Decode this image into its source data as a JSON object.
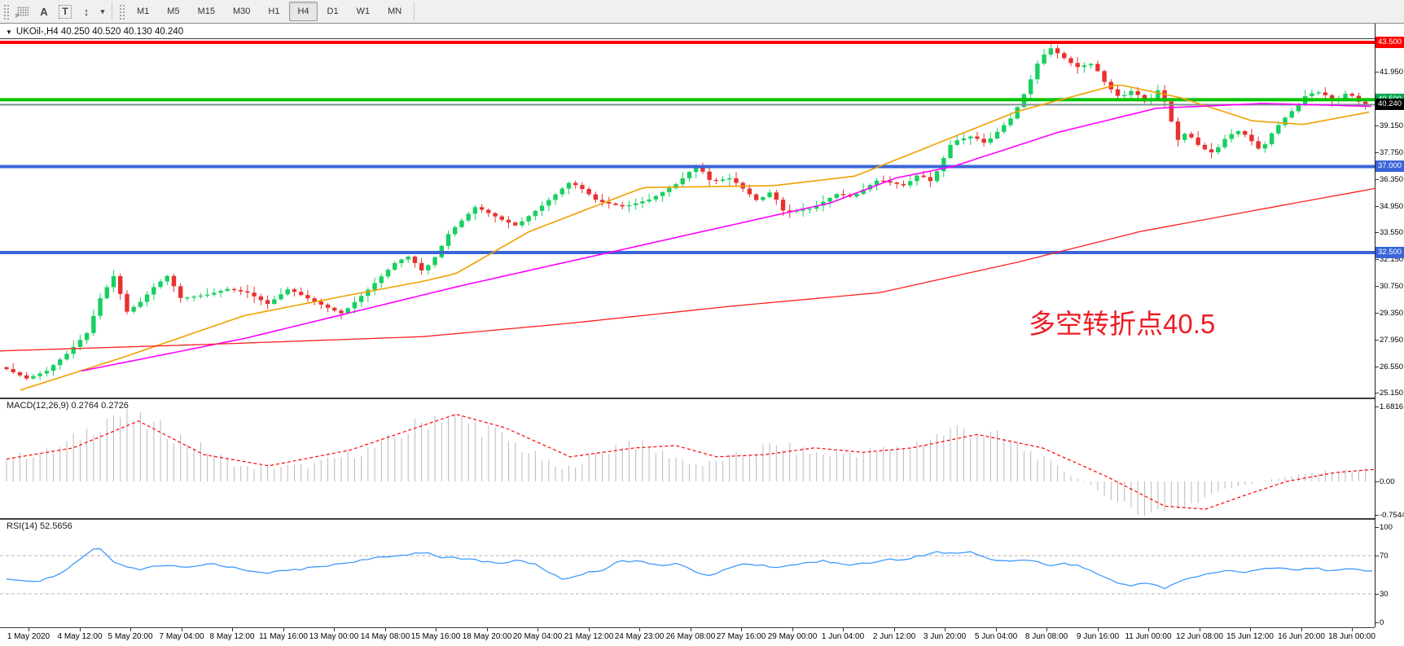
{
  "toolbar": {
    "icons": [
      {
        "name": "grid-f-icon",
        "glyph": "",
        "sub": "F"
      },
      {
        "name": "font-tool-icon",
        "glyph": "A",
        "sub": ""
      },
      {
        "name": "text-tool-icon",
        "glyph": "T",
        "sub": ""
      },
      {
        "name": "cycle-symbols-icon",
        "glyph": "↕",
        "sub": ""
      },
      {
        "name": "dropdown-caret-icon",
        "glyph": "▾",
        "sub": ""
      }
    ],
    "timeframes": [
      "M1",
      "M5",
      "M15",
      "M30",
      "H1",
      "H4",
      "D1",
      "W1",
      "MN"
    ],
    "active_timeframe": "H4"
  },
  "title": {
    "dropdown_glyph": "▼",
    "text": "UKOil-,H4  40.250 40.520 40.130 40.240"
  },
  "annotation": {
    "text": "多空转折点40.5",
    "color": "#ee1c25"
  },
  "price_axis": {
    "ticks": [
      "41.950",
      "39.150",
      "37.750",
      "36.350",
      "34.950",
      "33.550",
      "32.150",
      "30.750",
      "29.350",
      "27.950",
      "26.550",
      "25.150"
    ],
    "badges": [
      {
        "label": "43.500",
        "price": 43.5,
        "bg": "#ff0000"
      },
      {
        "label": "40.500",
        "price": 40.5,
        "bg": "#00a651"
      },
      {
        "label": "40.240",
        "price": 40.24,
        "bg": "#000000"
      },
      {
        "label": "37.000",
        "price": 37.0,
        "bg": "#3a64d8"
      },
      {
        "label": "32.500",
        "price": 32.5,
        "bg": "#3a64d8"
      }
    ]
  },
  "hlines": [
    {
      "price": 43.5,
      "color": "#fe0000",
      "width": 4
    },
    {
      "price": 40.5,
      "color": "#00c400",
      "width": 4
    },
    {
      "price": 40.24,
      "color": "#7f9193",
      "width": 2
    },
    {
      "price": 37.0,
      "color": "#3a64d8",
      "width": 4
    },
    {
      "price": 32.5,
      "color": "#3a64d8",
      "width": 4
    }
  ],
  "macd": {
    "label": "MACD(12,26,9) 0.2764 0.2726",
    "axis_labels": [
      "1.6816",
      "0.00",
      "-0.7544"
    ],
    "axis_values": [
      1.6816,
      0,
      -0.7544
    ],
    "hist_color": "#b9b9b9",
    "signal_color": "#ff0000",
    "hist_anchors": [
      [
        8,
        0.5
      ],
      [
        70,
        0.7
      ],
      [
        140,
        1.5
      ],
      [
        200,
        1.15
      ],
      [
        300,
        0.3
      ],
      [
        380,
        0.35
      ],
      [
        460,
        0.75
      ],
      [
        540,
        1.5
      ],
      [
        600,
        1.15
      ],
      [
        690,
        0.25
      ],
      [
        770,
        0.9
      ],
      [
        860,
        0.35
      ],
      [
        950,
        0.8
      ],
      [
        1010,
        0.6
      ],
      [
        1100,
        0.7
      ],
      [
        1180,
        1.2
      ],
      [
        1240,
        0.9
      ],
      [
        1330,
        0.0
      ],
      [
        1400,
        -0.75
      ],
      [
        1450,
        -0.6
      ],
      [
        1500,
        -0.2
      ],
      [
        1560,
        0.05
      ],
      [
        1620,
        0.2
      ],
      [
        1688,
        0.28
      ]
    ],
    "signal_anchors": [
      [
        8,
        0.5
      ],
      [
        90,
        0.75
      ],
      [
        170,
        1.35
      ],
      [
        250,
        0.6
      ],
      [
        330,
        0.35
      ],
      [
        430,
        0.7
      ],
      [
        560,
        1.5
      ],
      [
        620,
        1.2
      ],
      [
        700,
        0.55
      ],
      [
        780,
        0.75
      ],
      [
        830,
        0.8
      ],
      [
        880,
        0.55
      ],
      [
        940,
        0.6
      ],
      [
        1000,
        0.75
      ],
      [
        1060,
        0.65
      ],
      [
        1120,
        0.75
      ],
      [
        1200,
        1.05
      ],
      [
        1280,
        0.75
      ],
      [
        1360,
        0.1
      ],
      [
        1430,
        -0.55
      ],
      [
        1480,
        -0.62
      ],
      [
        1530,
        -0.3
      ],
      [
        1580,
        0.0
      ],
      [
        1640,
        0.2
      ],
      [
        1688,
        0.27
      ]
    ]
  },
  "rsi": {
    "label": "RSI(14) 52.5656",
    "axis_labels": [
      "100",
      "70",
      "30",
      "0"
    ],
    "axis_values": [
      100,
      70,
      30,
      0
    ],
    "levels": [
      70,
      30
    ],
    "line_color": "#3e9bff",
    "anchors": [
      [
        8,
        45
      ],
      [
        40,
        42
      ],
      [
        70,
        48
      ],
      [
        120,
        80
      ],
      [
        140,
        62
      ],
      [
        170,
        55
      ],
      [
        200,
        60
      ],
      [
        230,
        57
      ],
      [
        260,
        62
      ],
      [
        300,
        55
      ],
      [
        330,
        52
      ],
      [
        360,
        55
      ],
      [
        390,
        58
      ],
      [
        420,
        62
      ],
      [
        450,
        66
      ],
      [
        490,
        70
      ],
      [
        520,
        74
      ],
      [
        545,
        68
      ],
      [
        580,
        66
      ],
      [
        610,
        62
      ],
      [
        640,
        65
      ],
      [
        660,
        60
      ],
      [
        690,
        45
      ],
      [
        720,
        52
      ],
      [
        740,
        55
      ],
      [
        760,
        65
      ],
      [
        790,
        63
      ],
      [
        810,
        60
      ],
      [
        830,
        62
      ],
      [
        850,
        55
      ],
      [
        870,
        48
      ],
      [
        890,
        55
      ],
      [
        910,
        62
      ],
      [
        930,
        60
      ],
      [
        950,
        58
      ],
      [
        970,
        60
      ],
      [
        990,
        62
      ],
      [
        1010,
        65
      ],
      [
        1030,
        62
      ],
      [
        1050,
        60
      ],
      [
        1070,
        63
      ],
      [
        1090,
        66
      ],
      [
        1110,
        65
      ],
      [
        1130,
        70
      ],
      [
        1150,
        74
      ],
      [
        1170,
        72
      ],
      [
        1190,
        74
      ],
      [
        1210,
        68
      ],
      [
        1230,
        64
      ],
      [
        1250,
        66
      ],
      [
        1270,
        64
      ],
      [
        1290,
        60
      ],
      [
        1310,
        62
      ],
      [
        1330,
        58
      ],
      [
        1350,
        50
      ],
      [
        1370,
        42
      ],
      [
        1390,
        38
      ],
      [
        1410,
        42
      ],
      [
        1430,
        36
      ],
      [
        1450,
        44
      ],
      [
        1470,
        48
      ],
      [
        1490,
        52
      ],
      [
        1510,
        55
      ],
      [
        1530,
        52
      ],
      [
        1550,
        56
      ],
      [
        1570,
        58
      ],
      [
        1590,
        55
      ],
      [
        1610,
        57
      ],
      [
        1630,
        55
      ],
      [
        1650,
        56
      ],
      [
        1670,
        55
      ],
      [
        1685,
        53
      ]
    ]
  },
  "time_axis": {
    "labels": [
      "1 May 2020",
      "4 May 12:00",
      "5 May 20:00",
      "7 May 04:00",
      "8 May 12:00",
      "11 May 16:00",
      "13 May 00:00",
      "14 May 08:00",
      "15 May 16:00",
      "18 May 20:00",
      "20 May 04:00",
      "21 May 12:00",
      "24 May 23:00",
      "26 May 08:00",
      "27 May 16:00",
      "29 May 00:00",
      "1 Jun 04:00",
      "2 Jun 12:00",
      "3 Jun 20:00",
      "5 Jun 04:00",
      "8 Jun 08:00",
      "9 Jun 16:00",
      "11 Jun 00:00",
      "12 Jun 08:00",
      "15 Jun 12:00",
      "16 Jun 20:00",
      "18 Jun 00:00"
    ]
  },
  "chart_data": {
    "type": "candlestick",
    "symbol": "UKOil-",
    "timeframe": "H4",
    "current_ohlc": {
      "open": 40.25,
      "high": 40.52,
      "low": 40.13,
      "close": 40.24
    },
    "current_price": 40.24,
    "visible_price_range": [
      25.15,
      43.5
    ],
    "visible_time_range": [
      "1 May 2020",
      "18 Jun 00:00"
    ],
    "bar_count": 204,
    "up_color": "#17d05f",
    "down_color": "#e8312f",
    "horizontal_levels": [
      43.5,
      40.5,
      37.0,
      32.5
    ],
    "close_anchors": [
      [
        8,
        26.4
      ],
      [
        33,
        25.9
      ],
      [
        57,
        26.3
      ],
      [
        82,
        27.2
      ],
      [
        107,
        28.3
      ],
      [
        123,
        30.1
      ],
      [
        140,
        31.3
      ],
      [
        148,
        30.3
      ],
      [
        156,
        29.4
      ],
      [
        172,
        29.9
      ],
      [
        189,
        30.7
      ],
      [
        206,
        31.3
      ],
      [
        222,
        30.1
      ],
      [
        255,
        30.3
      ],
      [
        280,
        30.6
      ],
      [
        304,
        30.4
      ],
      [
        329,
        29.8
      ],
      [
        354,
        30.6
      ],
      [
        378,
        30.1
      ],
      [
        403,
        29.6
      ],
      [
        420,
        29.3
      ],
      [
        453,
        30.6
      ],
      [
        486,
        32.0
      ],
      [
        502,
        32.3
      ],
      [
        519,
        31.5
      ],
      [
        535,
        32.3
      ],
      [
        551,
        33.5
      ],
      [
        584,
        34.9
      ],
      [
        617,
        34.2
      ],
      [
        634,
        33.9
      ],
      [
        667,
        35.0
      ],
      [
        700,
        36.2
      ],
      [
        716,
        35.8
      ],
      [
        733,
        35.2
      ],
      [
        766,
        34.9
      ],
      [
        799,
        35.3
      ],
      [
        831,
        36.1
      ],
      [
        856,
        37.1
      ],
      [
        873,
        36.2
      ],
      [
        897,
        36.4
      ],
      [
        930,
        35.2
      ],
      [
        947,
        35.7
      ],
      [
        963,
        34.6
      ],
      [
        996,
        34.8
      ],
      [
        1029,
        35.6
      ],
      [
        1046,
        35.4
      ],
      [
        1078,
        36.3
      ],
      [
        1111,
        36.0
      ],
      [
        1128,
        36.6
      ],
      [
        1144,
        36.2
      ],
      [
        1169,
        38.3
      ],
      [
        1194,
        38.6
      ],
      [
        1210,
        38.2
      ],
      [
        1243,
        39.6
      ],
      [
        1260,
        41.0
      ],
      [
        1276,
        42.6
      ],
      [
        1290,
        43.2
      ],
      [
        1306,
        42.7
      ],
      [
        1322,
        42.2
      ],
      [
        1342,
        42.4
      ],
      [
        1358,
        41.3
      ],
      [
        1375,
        40.6
      ],
      [
        1391,
        41.0
      ],
      [
        1408,
        40.3
      ],
      [
        1424,
        41.1
      ],
      [
        1437,
        39.6
      ],
      [
        1444,
        38.3
      ],
      [
        1457,
        38.8
      ],
      [
        1474,
        38.0
      ],
      [
        1490,
        37.7
      ],
      [
        1507,
        38.6
      ],
      [
        1523,
        38.9
      ],
      [
        1540,
        38.2
      ],
      [
        1548,
        37.8
      ],
      [
        1564,
        38.9
      ],
      [
        1581,
        39.7
      ],
      [
        1589,
        40.0
      ],
      [
        1605,
        40.8
      ],
      [
        1622,
        40.9
      ],
      [
        1638,
        40.4
      ],
      [
        1655,
        40.9
      ],
      [
        1671,
        40.3
      ],
      [
        1680,
        40.24
      ]
    ],
    "moving_averages": [
      {
        "name": "ma-fast",
        "color": "#f0a000",
        "anchors": [
          [
            25,
            25.3
          ],
          [
            150,
            27.0
          ],
          [
            300,
            29.2
          ],
          [
            420,
            30.2
          ],
          [
            520,
            31.0
          ],
          [
            560,
            31.4
          ],
          [
            650,
            33.6
          ],
          [
            790,
            35.9
          ],
          [
            950,
            36.0
          ],
          [
            1050,
            36.5
          ],
          [
            1150,
            38.2
          ],
          [
            1250,
            39.9
          ],
          [
            1373,
            41.3
          ],
          [
            1450,
            40.6
          ],
          [
            1537,
            39.4
          ],
          [
            1600,
            39.2
          ],
          [
            1688,
            39.9
          ]
        ]
      },
      {
        "name": "ma-mid",
        "color": "#ff00ff",
        "anchors": [
          [
            100,
            26.3
          ],
          [
            300,
            28.0
          ],
          [
            560,
            30.7
          ],
          [
            800,
            33.0
          ],
          [
            1020,
            35.1
          ],
          [
            1100,
            36.4
          ],
          [
            1170,
            37.0
          ],
          [
            1300,
            38.8
          ],
          [
            1420,
            40.05
          ],
          [
            1550,
            40.3
          ],
          [
            1688,
            40.15
          ]
        ]
      },
      {
        "name": "ma-slow",
        "color": "#ff2020",
        "anchors": [
          [
            0,
            27.35
          ],
          [
            260,
            27.7
          ],
          [
            520,
            28.1
          ],
          [
            700,
            28.8
          ],
          [
            900,
            29.7
          ],
          [
            1080,
            30.4
          ],
          [
            1250,
            32.0
          ],
          [
            1400,
            33.6
          ],
          [
            1540,
            34.7
          ],
          [
            1688,
            35.85
          ]
        ]
      }
    ]
  }
}
